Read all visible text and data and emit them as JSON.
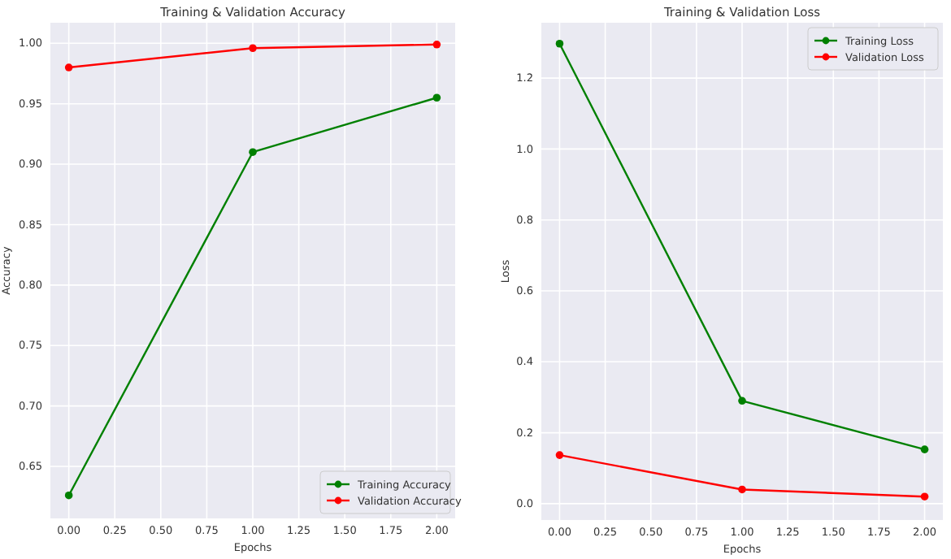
{
  "chart_data": [
    {
      "type": "line",
      "title": "Training & Validation Accuracy",
      "xlabel": "Epochs",
      "ylabel": "Accuracy",
      "x": [
        0,
        1,
        2
      ],
      "series": [
        {
          "name": "Training Accuracy",
          "color": "#008000",
          "values": [
            0.626,
            0.91,
            0.955
          ]
        },
        {
          "name": "Validation Accuracy",
          "color": "#ff0000",
          "values": [
            0.98,
            0.996,
            0.999
          ]
        }
      ],
      "xlim": [
        -0.1,
        2.1
      ],
      "xticks": [
        {
          "value": 0,
          "label": "0.00"
        },
        {
          "value": 0.25,
          "label": "0.25"
        },
        {
          "value": 0.5,
          "label": "0.50"
        },
        {
          "value": 0.75,
          "label": "0.75"
        },
        {
          "value": 1,
          "label": "1.00"
        },
        {
          "value": 1.25,
          "label": "1.25"
        },
        {
          "value": 1.5,
          "label": "1.50"
        },
        {
          "value": 1.75,
          "label": "1.75"
        },
        {
          "value": 2,
          "label": "2.00"
        }
      ],
      "ylim": [
        0.607,
        1.017
      ],
      "yticks": [
        {
          "value": 0.65,
          "label": "0.65"
        },
        {
          "value": 0.7,
          "label": "0.70"
        },
        {
          "value": 0.75,
          "label": "0.75"
        },
        {
          "value": 0.8,
          "label": "0.80"
        },
        {
          "value": 0.85,
          "label": "0.85"
        },
        {
          "value": 0.9,
          "label": "0.90"
        },
        {
          "value": 0.95,
          "label": "0.95"
        },
        {
          "value": 1,
          "label": "1.00"
        }
      ],
      "grid": true,
      "legend": "bottom right",
      "marker": "circle",
      "line_style": "solid"
    },
    {
      "type": "line",
      "title": "Training & Validation Loss",
      "xlabel": "Epochs",
      "ylabel": "Loss",
      "x": [
        0,
        1,
        2
      ],
      "series": [
        {
          "name": "Training Loss",
          "color": "#008000",
          "values": [
            1.297,
            0.29,
            0.153
          ]
        },
        {
          "name": "Validation Loss",
          "color": "#ff0000",
          "values": [
            0.137,
            0.04,
            0.02
          ]
        }
      ],
      "xlim": [
        -0.1,
        2.1
      ],
      "xticks": [
        {
          "value": 0,
          "label": "0.00"
        },
        {
          "value": 0.25,
          "label": "0.25"
        },
        {
          "value": 0.5,
          "label": "0.50"
        },
        {
          "value": 0.75,
          "label": "0.75"
        },
        {
          "value": 1,
          "label": "1.00"
        },
        {
          "value": 1.25,
          "label": "1.25"
        },
        {
          "value": 1.5,
          "label": "1.50"
        },
        {
          "value": 1.75,
          "label": "1.75"
        },
        {
          "value": 2,
          "label": "2.00"
        }
      ],
      "ylim": [
        -0.046,
        1.356
      ],
      "yticks": [
        {
          "value": 0,
          "label": "0.0"
        },
        {
          "value": 0.2,
          "label": "0.2"
        },
        {
          "value": 0.4,
          "label": "0.4"
        },
        {
          "value": 0.6,
          "label": "0.6"
        },
        {
          "value": 0.8,
          "label": "0.8"
        },
        {
          "value": 1,
          "label": "1.0"
        },
        {
          "value": 1.2,
          "label": "1.2"
        }
      ],
      "grid": true,
      "legend": "top right",
      "marker": "circle",
      "line_style": "solid"
    }
  ]
}
